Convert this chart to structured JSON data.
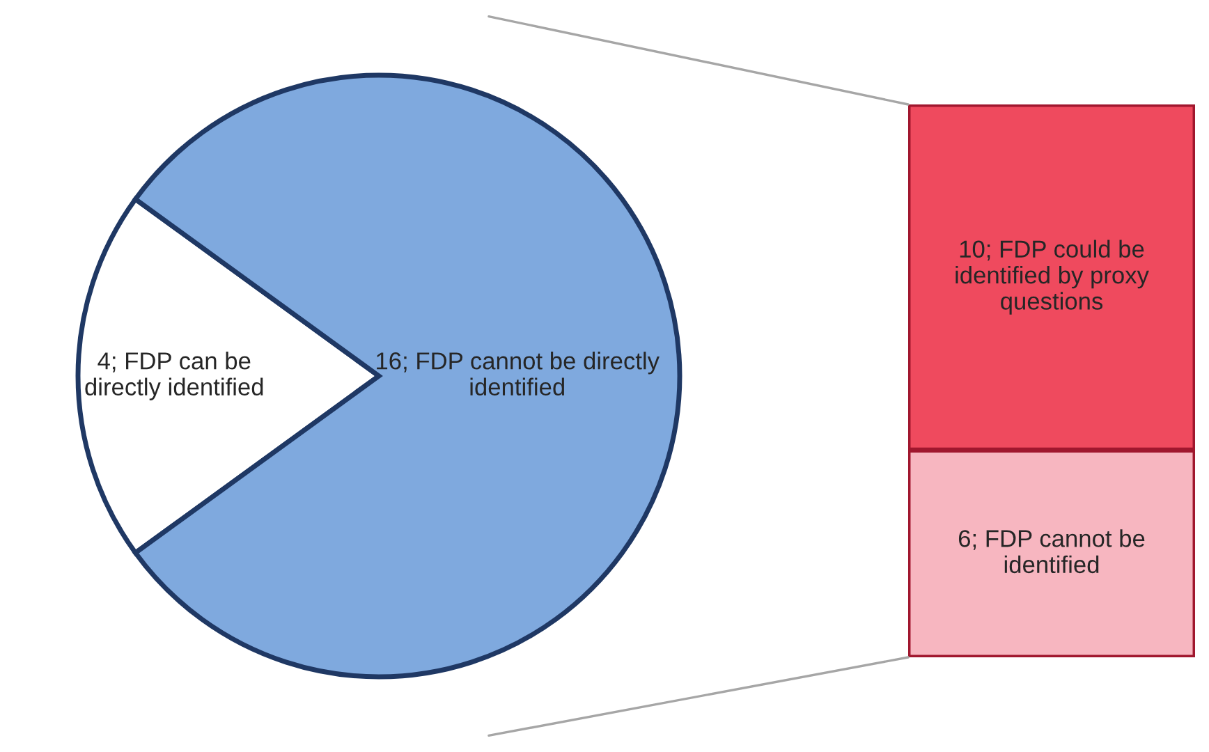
{
  "chart_data": [
    {
      "type": "pie",
      "categories": [
        "4; FDP can be directly identified",
        "16; FDP cannot be directly identified"
      ],
      "values": [
        4,
        16
      ],
      "colors": [
        "#ffffff",
        "#7fa9de"
      ],
      "legend": false
    },
    {
      "type": "bar",
      "stacked": true,
      "categories": [
        null
      ],
      "legend": false,
      "series": [
        {
          "color": "#f7b6c0",
          "values": [
            6
          ],
          "value_labels": [
            "6; FDP cannot be identified"
          ]
        },
        {
          "color": "#ef4a5e",
          "values": [
            10
          ],
          "value_labels": [
            "10; FDP could be identified by proxy questions"
          ]
        }
      ]
    }
  ]
}
